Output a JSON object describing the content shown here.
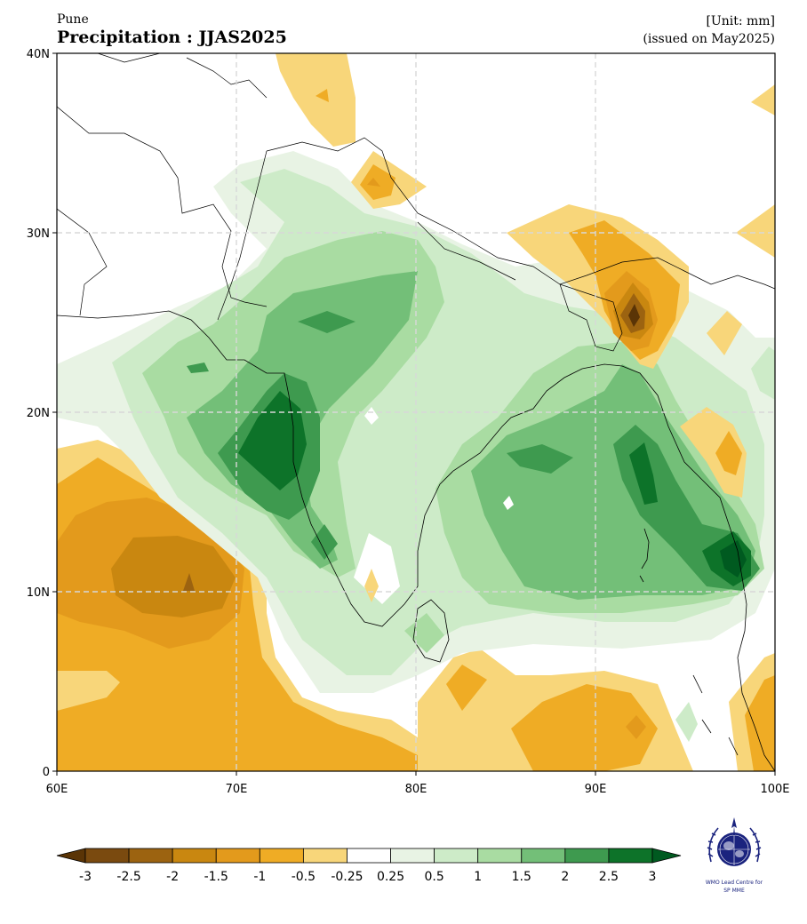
{
  "header": {
    "location": "Pune",
    "title": "Precipitation : JJAS2025",
    "unit": "[Unit: mm]",
    "issued": "(issued on May2025)"
  },
  "map": {
    "extent": {
      "lon": [
        60,
        100
      ],
      "lat": [
        0,
        40
      ]
    },
    "x_ticks": [
      {
        "lon": 60,
        "label": "60E"
      },
      {
        "lon": 70,
        "label": "70E"
      },
      {
        "lon": 80,
        "label": "80E"
      },
      {
        "lon": 90,
        "label": "90E"
      },
      {
        "lon": 100,
        "label": "100E"
      }
    ],
    "y_ticks": [
      {
        "lat": 0,
        "label": "0"
      },
      {
        "lat": 10,
        "label": "10N"
      },
      {
        "lat": 20,
        "label": "20N"
      },
      {
        "lat": 30,
        "label": "30N"
      },
      {
        "lat": 40,
        "label": "40N"
      }
    ],
    "grid": "dashed",
    "gridlines_lon": [
      70,
      80,
      90
    ],
    "gridlines_lat": [
      10,
      20,
      30
    ]
  },
  "colorbar": {
    "labels": [
      "-3",
      "-2.5",
      "-2",
      "-1.5",
      "-1",
      "-0.5",
      "-0.25",
      "0.25",
      "0.5",
      "1",
      "1.5",
      "2",
      "2.5",
      "3"
    ],
    "colors": [
      "#7a4a0f",
      "#9c6310",
      "#c98710",
      "#e39a1c",
      "#efac25",
      "#f8d67a",
      "#ffffff",
      "#e8f3e4",
      "#cdebc8",
      "#a9dca2",
      "#73bf78",
      "#3e9a4f",
      "#0d7329"
    ],
    "under_color": "#5a3406",
    "over_color": "#005a20"
  },
  "logo": {
    "line1": "WMO Lead Centre for",
    "line2": "SP MME"
  }
}
